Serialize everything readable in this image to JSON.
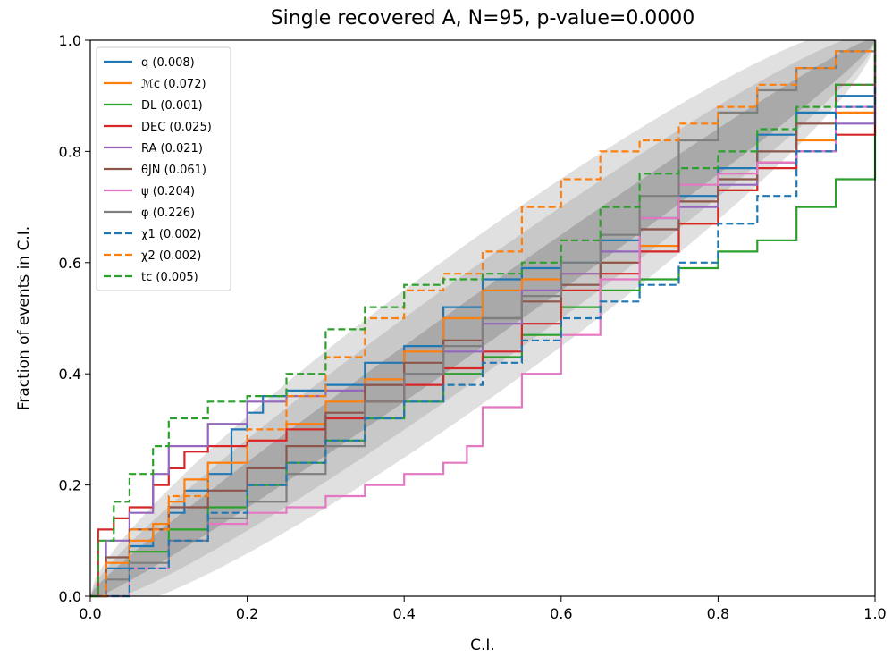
{
  "chart_data": {
    "type": "line",
    "title": "Single recovered A,  N=95, p-value=0.0000",
    "xlabel": "C.I.",
    "ylabel": "Fraction of events in C.I.",
    "xlim": [
      0.0,
      1.0
    ],
    "ylim": [
      0.0,
      1.0
    ],
    "xticks": [
      "0.0",
      "0.2",
      "0.4",
      "0.6",
      "0.8",
      "1.0"
    ],
    "yticks": [
      "0.0",
      "0.2",
      "0.4",
      "0.6",
      "0.8",
      "1.0"
    ],
    "grid": false,
    "legend_position": "upper-left",
    "confidence_bands": [
      {
        "level": "outer",
        "color": "#e0e0e0"
      },
      {
        "level": "middle",
        "color": "#c8c8c8"
      },
      {
        "level": "inner",
        "color": "#a9a9a9"
      }
    ],
    "series": [
      {
        "name": "q (0.008)",
        "color": "#1f77b4",
        "dash": "solid",
        "x": [
          0.0,
          0.02,
          0.05,
          0.08,
          0.1,
          0.12,
          0.15,
          0.18,
          0.2,
          0.22,
          0.25,
          0.3,
          0.35,
          0.4,
          0.45,
          0.5,
          0.55,
          0.6,
          0.65,
          0.7,
          0.75,
          0.8,
          0.85,
          0.9,
          0.95,
          1.0
        ],
        "y": [
          0.0,
          0.05,
          0.09,
          0.12,
          0.15,
          0.19,
          0.22,
          0.3,
          0.33,
          0.36,
          0.37,
          0.38,
          0.42,
          0.45,
          0.52,
          0.57,
          0.59,
          0.6,
          0.64,
          0.68,
          0.72,
          0.77,
          0.83,
          0.87,
          0.9,
          1.0
        ]
      },
      {
        "name": "ℳc (0.072)",
        "color": "#ff7f0e",
        "dash": "solid",
        "x": [
          0.0,
          0.02,
          0.05,
          0.08,
          0.1,
          0.12,
          0.15,
          0.2,
          0.25,
          0.3,
          0.35,
          0.4,
          0.45,
          0.5,
          0.55,
          0.6,
          0.65,
          0.7,
          0.75,
          0.8,
          0.85,
          0.9,
          0.95,
          1.0
        ],
        "y": [
          0.0,
          0.06,
          0.1,
          0.13,
          0.17,
          0.21,
          0.24,
          0.28,
          0.31,
          0.35,
          0.39,
          0.44,
          0.5,
          0.55,
          0.57,
          0.58,
          0.6,
          0.63,
          0.67,
          0.73,
          0.78,
          0.82,
          0.87,
          1.0
        ]
      },
      {
        "name": "DL (0.001)",
        "color": "#2ca02c",
        "dash": "solid",
        "x": [
          0.0,
          0.05,
          0.1,
          0.15,
          0.2,
          0.25,
          0.3,
          0.35,
          0.4,
          0.45,
          0.5,
          0.55,
          0.6,
          0.65,
          0.7,
          0.75,
          0.8,
          0.85,
          0.9,
          0.95,
          1.0
        ],
        "y": [
          0.0,
          0.08,
          0.12,
          0.16,
          0.2,
          0.24,
          0.28,
          0.32,
          0.35,
          0.4,
          0.43,
          0.47,
          0.52,
          0.55,
          0.57,
          0.59,
          0.62,
          0.64,
          0.7,
          0.75,
          1.0
        ]
      },
      {
        "name": "DEC (0.025)",
        "color": "#d62728",
        "dash": "solid",
        "x": [
          0.0,
          0.01,
          0.03,
          0.05,
          0.08,
          0.1,
          0.12,
          0.15,
          0.2,
          0.25,
          0.3,
          0.35,
          0.4,
          0.45,
          0.5,
          0.55,
          0.6,
          0.65,
          0.7,
          0.75,
          0.8,
          0.85,
          0.9,
          0.95,
          1.0
        ],
        "y": [
          0.0,
          0.12,
          0.14,
          0.16,
          0.2,
          0.23,
          0.26,
          0.27,
          0.28,
          0.3,
          0.32,
          0.35,
          0.38,
          0.41,
          0.44,
          0.49,
          0.55,
          0.58,
          0.62,
          0.67,
          0.73,
          0.77,
          0.8,
          0.83,
          1.0
        ]
      },
      {
        "name": "RA (0.021)",
        "color": "#9467bd",
        "dash": "solid",
        "x": [
          0.0,
          0.02,
          0.05,
          0.08,
          0.1,
          0.15,
          0.2,
          0.25,
          0.3,
          0.35,
          0.4,
          0.45,
          0.5,
          0.55,
          0.6,
          0.65,
          0.7,
          0.75,
          0.8,
          0.85,
          0.9,
          0.95,
          1.0
        ],
        "y": [
          0.0,
          0.1,
          0.15,
          0.22,
          0.27,
          0.31,
          0.35,
          0.36,
          0.37,
          0.38,
          0.4,
          0.44,
          0.49,
          0.55,
          0.58,
          0.62,
          0.66,
          0.7,
          0.74,
          0.78,
          0.8,
          0.85,
          1.0
        ]
      },
      {
        "name": "θJN (0.061)",
        "color": "#8c564b",
        "dash": "solid",
        "x": [
          0.0,
          0.02,
          0.05,
          0.1,
          0.15,
          0.2,
          0.25,
          0.3,
          0.35,
          0.4,
          0.45,
          0.5,
          0.55,
          0.6,
          0.65,
          0.7,
          0.75,
          0.8,
          0.85,
          0.9,
          0.95,
          1.0
        ],
        "y": [
          0.0,
          0.07,
          0.12,
          0.16,
          0.19,
          0.23,
          0.27,
          0.33,
          0.38,
          0.42,
          0.46,
          0.5,
          0.53,
          0.56,
          0.6,
          0.66,
          0.71,
          0.75,
          0.8,
          0.85,
          0.92,
          1.0
        ]
      },
      {
        "name": "ψ (0.204)",
        "color": "#e377c2",
        "dash": "solid",
        "x": [
          0.0,
          0.05,
          0.1,
          0.15,
          0.2,
          0.25,
          0.3,
          0.35,
          0.4,
          0.45,
          0.48,
          0.5,
          0.55,
          0.6,
          0.65,
          0.7,
          0.75,
          0.8,
          0.85,
          0.9,
          0.95,
          1.0
        ],
        "y": [
          0.0,
          0.05,
          0.1,
          0.13,
          0.15,
          0.16,
          0.18,
          0.2,
          0.22,
          0.24,
          0.27,
          0.34,
          0.4,
          0.47,
          0.57,
          0.68,
          0.74,
          0.76,
          0.78,
          0.8,
          0.88,
          1.0
        ]
      },
      {
        "name": "φ (0.226)",
        "color": "#7f7f7f",
        "dash": "solid",
        "x": [
          0.0,
          0.02,
          0.05,
          0.1,
          0.15,
          0.2,
          0.25,
          0.3,
          0.35,
          0.4,
          0.45,
          0.5,
          0.55,
          0.6,
          0.65,
          0.7,
          0.75,
          0.8,
          0.85,
          0.9,
          0.95,
          1.0
        ],
        "y": [
          0.0,
          0.03,
          0.06,
          0.1,
          0.14,
          0.17,
          0.22,
          0.27,
          0.35,
          0.4,
          0.45,
          0.5,
          0.54,
          0.6,
          0.65,
          0.72,
          0.82,
          0.87,
          0.91,
          0.95,
          0.98,
          1.0
        ]
      },
      {
        "name": "χ1 (0.002)",
        "color": "#1f77b4",
        "dash": "dashed",
        "x": [
          0.0,
          0.05,
          0.1,
          0.15,
          0.2,
          0.25,
          0.3,
          0.35,
          0.4,
          0.45,
          0.5,
          0.55,
          0.6,
          0.65,
          0.7,
          0.75,
          0.8,
          0.85,
          0.9,
          0.95,
          1.0
        ],
        "y": [
          0.0,
          0.05,
          0.1,
          0.15,
          0.2,
          0.24,
          0.28,
          0.32,
          0.35,
          0.38,
          0.42,
          0.46,
          0.5,
          0.53,
          0.56,
          0.6,
          0.67,
          0.72,
          0.8,
          0.88,
          1.0
        ]
      },
      {
        "name": "χ2 (0.002)",
        "color": "#ff7f0e",
        "dash": "dashed",
        "x": [
          0.0,
          0.02,
          0.05,
          0.1,
          0.15,
          0.2,
          0.25,
          0.3,
          0.35,
          0.4,
          0.45,
          0.5,
          0.55,
          0.6,
          0.65,
          0.7,
          0.75,
          0.8,
          0.85,
          0.9,
          0.95,
          1.0
        ],
        "y": [
          0.0,
          0.06,
          0.12,
          0.18,
          0.24,
          0.3,
          0.36,
          0.43,
          0.5,
          0.55,
          0.58,
          0.62,
          0.7,
          0.75,
          0.8,
          0.82,
          0.85,
          0.88,
          0.92,
          0.95,
          0.98,
          1.0
        ]
      },
      {
        "name": "tc (0.005)",
        "color": "#2ca02c",
        "dash": "dashed",
        "x": [
          0.0,
          0.01,
          0.03,
          0.05,
          0.08,
          0.1,
          0.15,
          0.2,
          0.25,
          0.3,
          0.35,
          0.4,
          0.45,
          0.5,
          0.55,
          0.6,
          0.65,
          0.7,
          0.75,
          0.8,
          0.85,
          0.9,
          0.95,
          1.0
        ],
        "y": [
          0.0,
          0.1,
          0.17,
          0.22,
          0.27,
          0.32,
          0.35,
          0.36,
          0.4,
          0.48,
          0.52,
          0.56,
          0.57,
          0.58,
          0.6,
          0.64,
          0.7,
          0.76,
          0.77,
          0.8,
          0.84,
          0.88,
          0.92,
          1.0
        ]
      }
    ]
  }
}
